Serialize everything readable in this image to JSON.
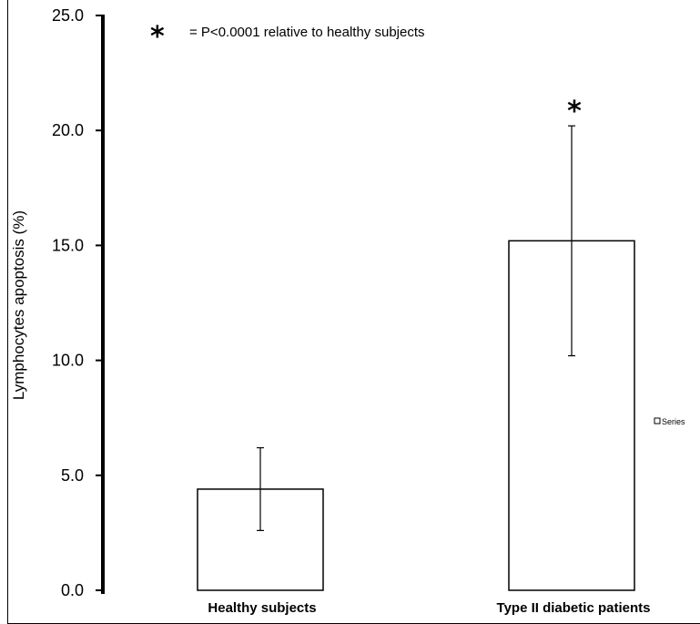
{
  "chart_data": {
    "type": "bar",
    "categories": [
      "Healthy subjects",
      "Type II diabetic patients"
    ],
    "series": [
      {
        "name": "Series",
        "values": [
          4.4,
          15.2
        ],
        "error": [
          1.8,
          5.0
        ]
      }
    ],
    "ylabel": "Lymphocytes apoptosis (%)",
    "xlabel": "",
    "title": "",
    "ylim": [
      0,
      25
    ],
    "yticks": [
      "0.0",
      "5.0",
      "10.0",
      "15.0",
      "20.0",
      "25.0"
    ],
    "significance": {
      "marker": "*",
      "note": "= P<0.0001 relative to healthy subjects",
      "marked_categories": [
        "Type II diabetic patients"
      ]
    },
    "legend": {
      "position": "right",
      "entries": [
        "Series"
      ]
    },
    "grid": false,
    "bar_fill": "#ffffff",
    "bar_stroke": "#000000"
  }
}
